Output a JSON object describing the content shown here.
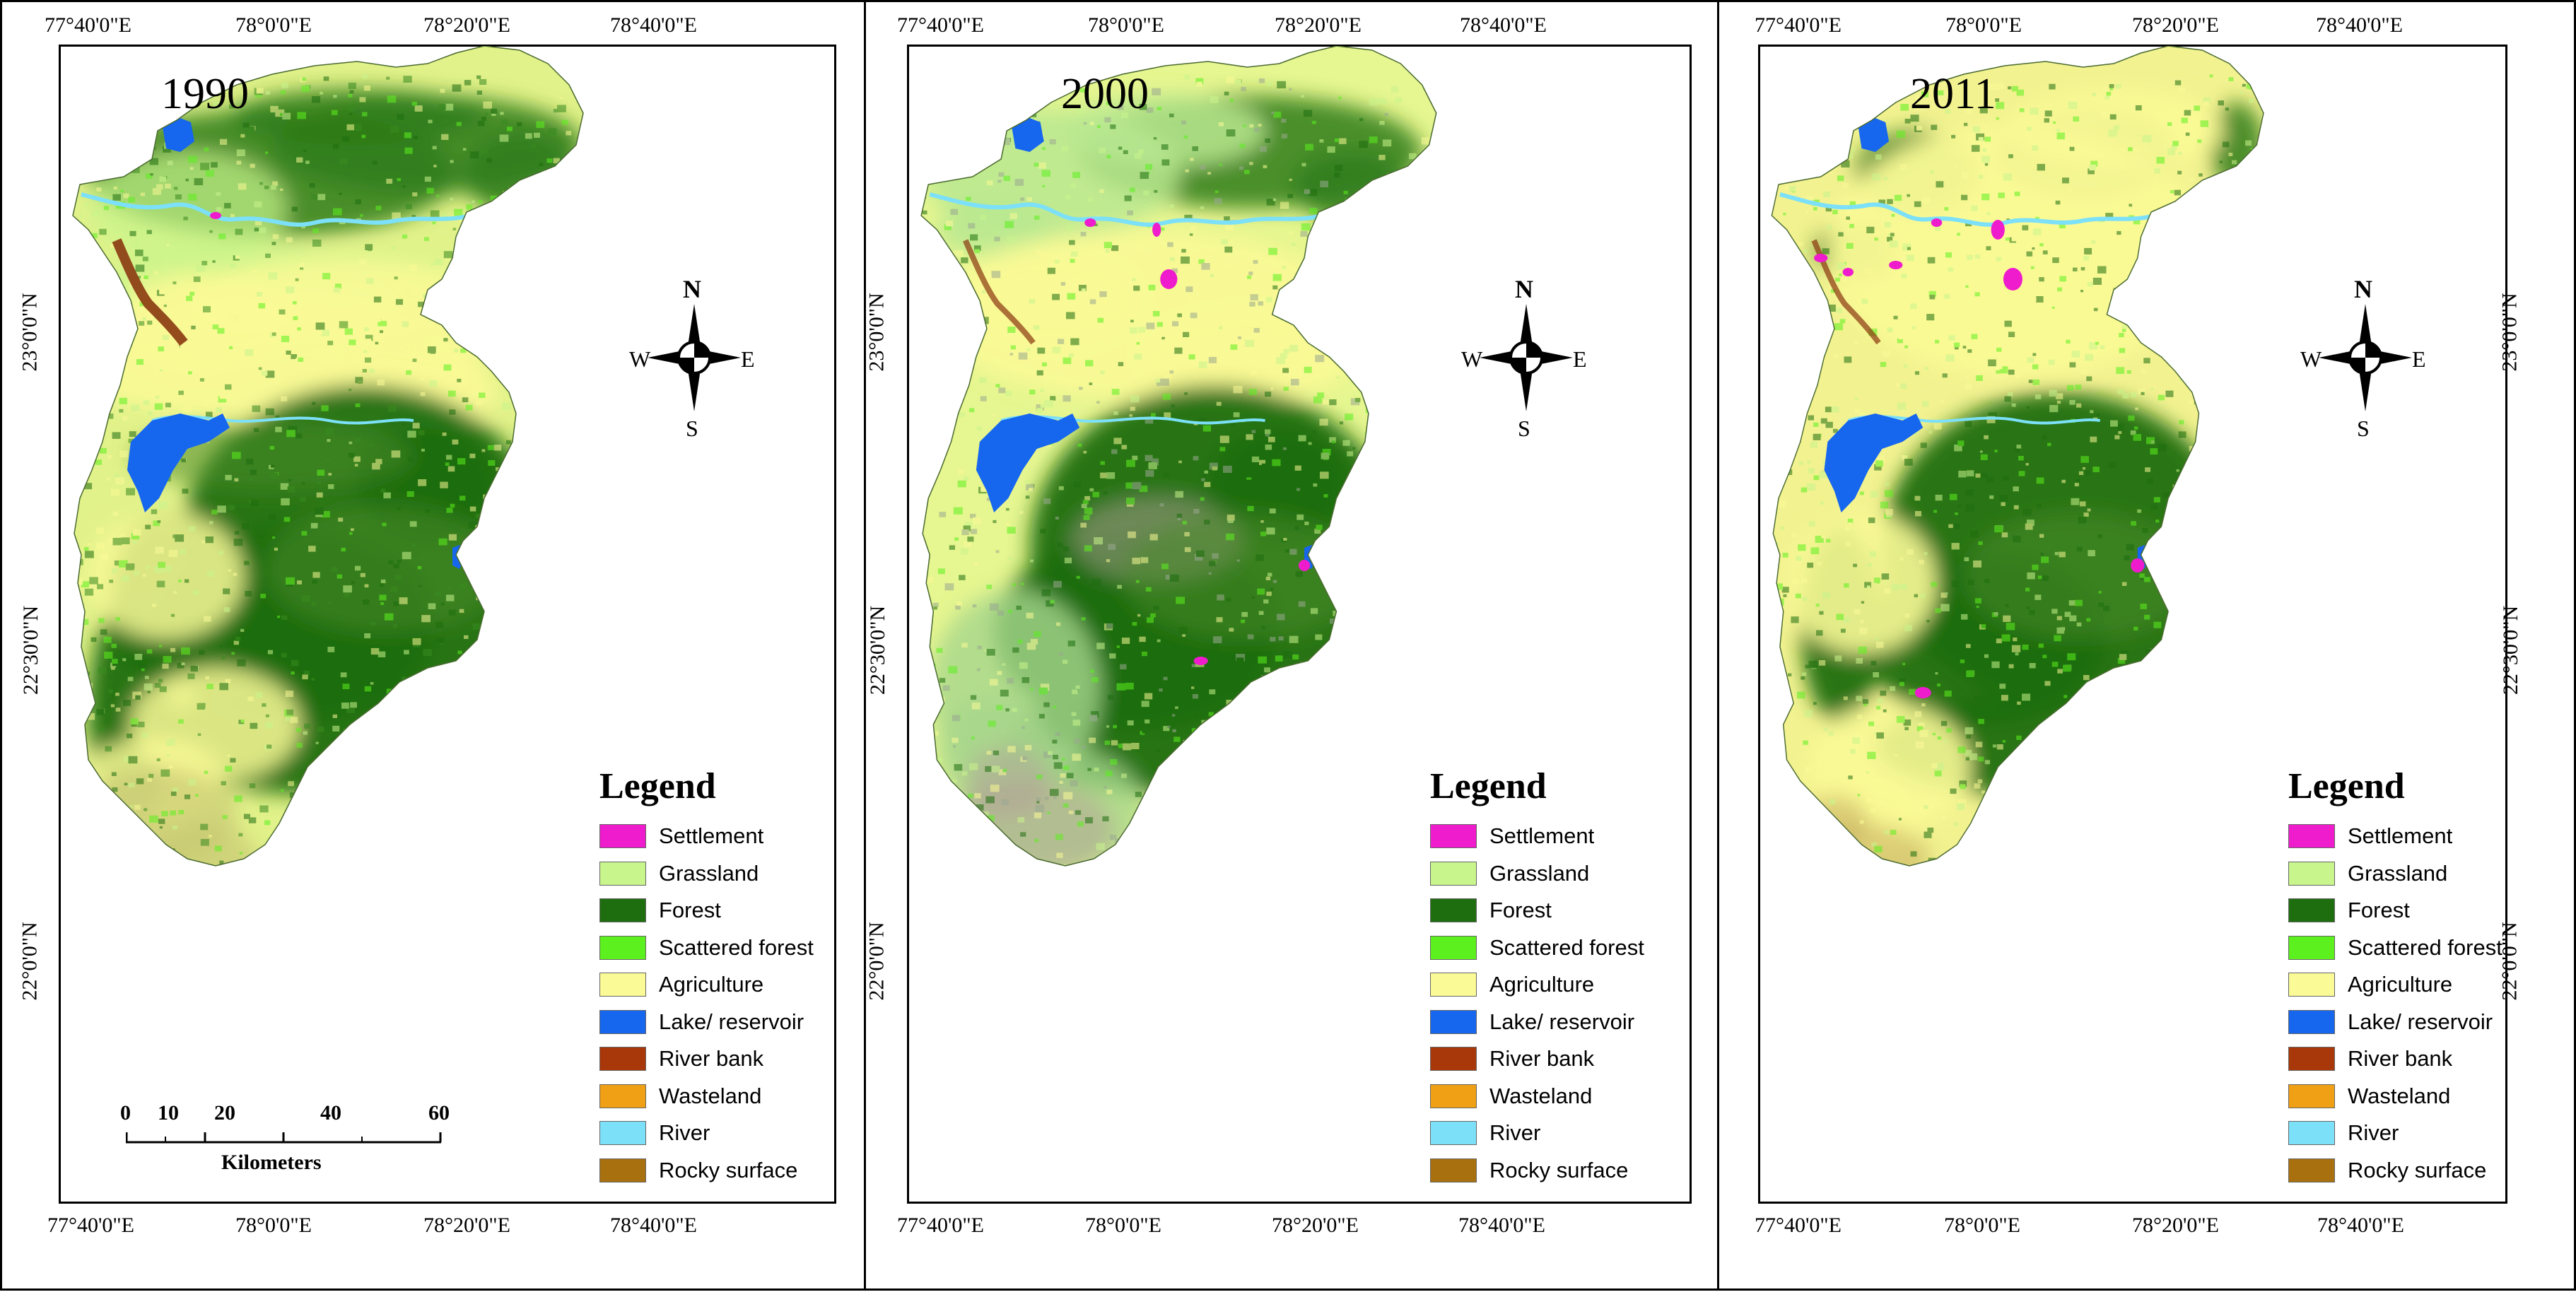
{
  "panels": [
    {
      "year": "1990",
      "variant": "p1990"
    },
    {
      "year": "2000",
      "variant": "p2000"
    },
    {
      "year": "2011",
      "variant": "p2011"
    }
  ],
  "ticks": {
    "top": [
      "77°40'0\"E",
      "78°0'0\"E",
      "78°20'0\"E",
      "78°40'0\"E"
    ],
    "bottom": [
      "77°40'0\"E",
      "78°0'0\"E",
      "78°20'0\"E",
      "78°40'0\"E"
    ],
    "left": [
      "23°0'0\"N",
      "22°30'0\"N",
      "22°0'0\"N"
    ]
  },
  "compass": {
    "n": "N",
    "s": "S",
    "e": "E",
    "w": "W"
  },
  "legend": {
    "title": "Legend",
    "items": [
      {
        "label": "Settlement",
        "color": "#ee1ccc"
      },
      {
        "label": "Grassland",
        "color": "#c8f58c"
      },
      {
        "label": "Forest",
        "color": "#1e6e10"
      },
      {
        "label": "Scattered forest",
        "color": "#5cf01e"
      },
      {
        "label": "Agriculture",
        "color": "#fafa96"
      },
      {
        "label": "Lake/ reservoir",
        "color": "#1666ee"
      },
      {
        "label": "River bank",
        "color": "#a8380a"
      },
      {
        "label": "Wasteland",
        "color": "#f0a014"
      },
      {
        "label": "River",
        "color": "#7ce0f8"
      },
      {
        "label": "Rocky surface",
        "color": "#a8700e"
      }
    ]
  },
  "scalebar": {
    "labels": [
      "0",
      "10",
      "20",
      "40",
      "60"
    ],
    "unit": "Kilometers"
  }
}
